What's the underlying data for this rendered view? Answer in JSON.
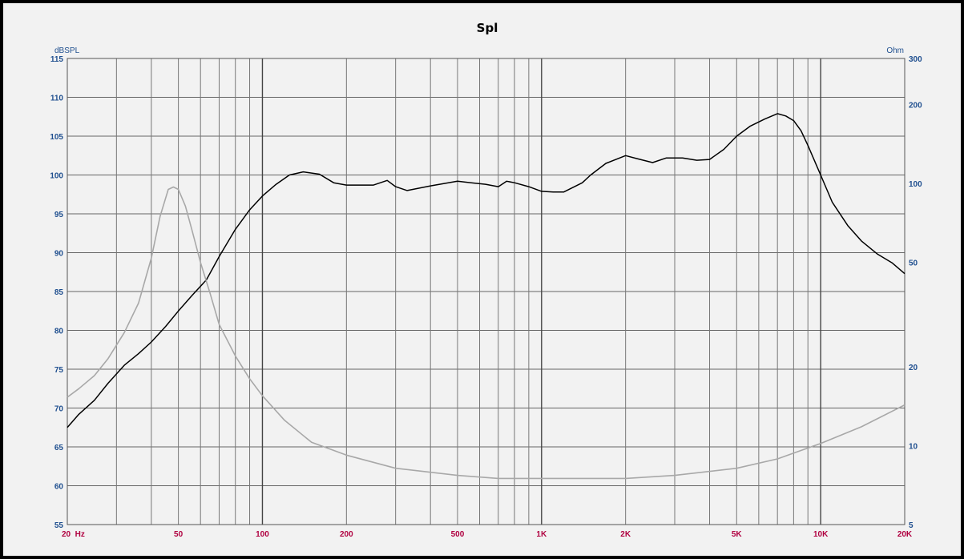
{
  "chart_data": {
    "type": "line",
    "title": "Spl",
    "ylabel_left": "dBSPL",
    "ylabel_right": "Ohm",
    "x_scale": "log",
    "xlim": [
      20,
      20000
    ],
    "ylim_left": [
      55,
      115
    ],
    "ylim_right": [
      5,
      300
    ],
    "y_right_scale": "log",
    "grid": true,
    "x_ticks": [
      {
        "value": 20,
        "label": "20  Hz"
      },
      {
        "value": 50,
        "label": "50"
      },
      {
        "value": 100,
        "label": "100"
      },
      {
        "value": 200,
        "label": "200"
      },
      {
        "value": 500,
        "label": "500"
      },
      {
        "value": 1000,
        "label": "1K"
      },
      {
        "value": 2000,
        "label": "2K"
      },
      {
        "value": 5000,
        "label": "5K"
      },
      {
        "value": 10000,
        "label": "10K"
      },
      {
        "value": 20000,
        "label": "20K"
      }
    ],
    "y_ticks_left": [
      115,
      110,
      105,
      100,
      95,
      90,
      85,
      80,
      75,
      70,
      65,
      60,
      55
    ],
    "y_ticks_right": [
      300,
      200,
      100,
      50,
      20,
      10,
      5
    ],
    "series": [
      {
        "axis": "left",
        "color": "#000000",
        "x": [
          20,
          22,
          25,
          28,
          32,
          36,
          40,
          45,
          50,
          56,
          63,
          70,
          80,
          90,
          100,
          112,
          125,
          140,
          160,
          180,
          200,
          250,
          280,
          300,
          330,
          400,
          500,
          560,
          630,
          700,
          750,
          800,
          900,
          1000,
          1100,
          1200,
          1400,
          1500,
          1700,
          2000,
          2200,
          2500,
          2800,
          3200,
          3600,
          4000,
          4500,
          5000,
          5600,
          6300,
          7000,
          7500,
          8000,
          8500,
          9000,
          10000,
          11000,
          12500,
          14000,
          16000,
          18000,
          20000
        ],
        "values": [
          67.5,
          69.2,
          71,
          73.2,
          75.5,
          77,
          78.5,
          80.5,
          82.5,
          84.5,
          86.5,
          89.5,
          93,
          95.5,
          97.3,
          98.8,
          100,
          100.4,
          100.1,
          99,
          98.7,
          98.7,
          99.3,
          98.5,
          98,
          98.6,
          99.2,
          99,
          98.8,
          98.5,
          99.2,
          99,
          98.5,
          97.9,
          97.8,
          97.8,
          99,
          100,
          101.5,
          102.5,
          102.1,
          101.6,
          102.2,
          102.2,
          101.9,
          102,
          103.3,
          105,
          106.3,
          107.2,
          107.9,
          107.6,
          107,
          105.7,
          103.8,
          100,
          96.5,
          93.5,
          91.5,
          89.8,
          88.7,
          87.3
        ]
      },
      {
        "axis": "right",
        "color": "#a8a8a8",
        "x": [
          20,
          22,
          25,
          28,
          32,
          36,
          40,
          43,
          46,
          48,
          50,
          53,
          56,
          60,
          65,
          70,
          80,
          90,
          100,
          120,
          150,
          200,
          300,
          500,
          700,
          1000,
          1500,
          2000,
          3000,
          5000,
          7000,
          10000,
          14000,
          20000
        ],
        "values": [
          15.3,
          16.5,
          18.5,
          21.5,
          27,
          35,
          52,
          75,
          95,
          97,
          95,
          82,
          66,
          50,
          38,
          29,
          22,
          18,
          15.5,
          12.5,
          10.3,
          9.2,
          8.2,
          7.7,
          7.5,
          7.5,
          7.5,
          7.5,
          7.7,
          8.2,
          8.9,
          10.2,
          11.8,
          14.3
        ]
      }
    ]
  }
}
